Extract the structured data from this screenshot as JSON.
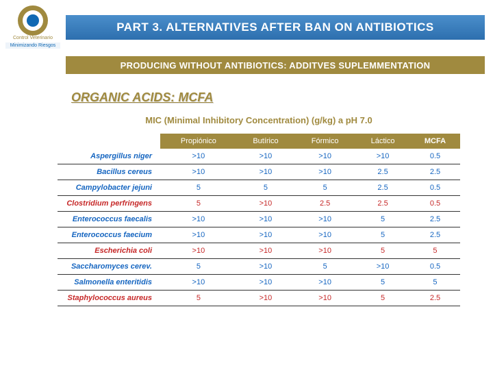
{
  "logo": {
    "line1": "Control Veterinario",
    "line2": "Minimizando Riesgos"
  },
  "title": "PART 3. ALTERNATIVES AFTER BAN ON ANTIBIOTICS",
  "subtitle": "PRODUCING WITHOUT ANTIBIOTICS: ADDITVES SUPLEMMENTATION",
  "section_heading": "ORGANIC ACIDS: MCFA",
  "colors": {
    "brand_blue": "#1169b3",
    "brand_olive": "#a08a3f",
    "header_blue_top": "#4a8ecb",
    "header_blue_bottom": "#2d6fae",
    "cell_blue": "#1565c0",
    "cell_red": "#c62828",
    "row_border": "#333333",
    "background": "#ffffff"
  },
  "typography": {
    "title_fontsize": 17,
    "subtitle_fontsize": 13,
    "section_heading_fontsize": 18,
    "caption_fontsize": 13,
    "cell_fontsize": 11
  },
  "table": {
    "type": "table",
    "caption": "MIC (Minimal Inhibitory Concentration) (g/kg) a pH 7.0",
    "columns": [
      "Propiónico",
      "Butírico",
      "Fórmico",
      "Láctico",
      "MCFA"
    ],
    "rows": [
      {
        "organism": "Aspergillus niger",
        "color": "blue",
        "values": [
          ">10",
          ">10",
          ">10",
          ">10",
          "0.5"
        ]
      },
      {
        "organism": "Bacillus cereus",
        "color": "blue",
        "values": [
          ">10",
          ">10",
          ">10",
          "2.5",
          "2.5"
        ]
      },
      {
        "organism": "Campylobacter jejuni",
        "color": "blue",
        "values": [
          "5",
          "5",
          "5",
          "2.5",
          "0.5"
        ]
      },
      {
        "organism": "Clostridium perfringens",
        "color": "red",
        "values": [
          "5",
          ">10",
          "2.5",
          "2.5",
          "0.5"
        ]
      },
      {
        "organism": "Enterococcus faecalis",
        "color": "blue",
        "values": [
          ">10",
          ">10",
          ">10",
          "5",
          "2.5"
        ]
      },
      {
        "organism": "Enterococcus faecium",
        "color": "blue",
        "values": [
          ">10",
          ">10",
          ">10",
          "5",
          "2.5"
        ]
      },
      {
        "organism": "Escherichia coli",
        "color": "red",
        "values": [
          ">10",
          ">10",
          ">10",
          "5",
          "5"
        ]
      },
      {
        "organism": "Saccharomyces cerev.",
        "color": "blue",
        "values": [
          "5",
          ">10",
          "5",
          ">10",
          "0.5"
        ]
      },
      {
        "organism": "Salmonella enteritidis",
        "color": "blue",
        "values": [
          ">10",
          ">10",
          ">10",
          "5",
          "5"
        ]
      },
      {
        "organism": "Staphylococcus aureus",
        "color": "red",
        "values": [
          "5",
          ">10",
          ">10",
          "5",
          "2.5"
        ]
      }
    ]
  }
}
